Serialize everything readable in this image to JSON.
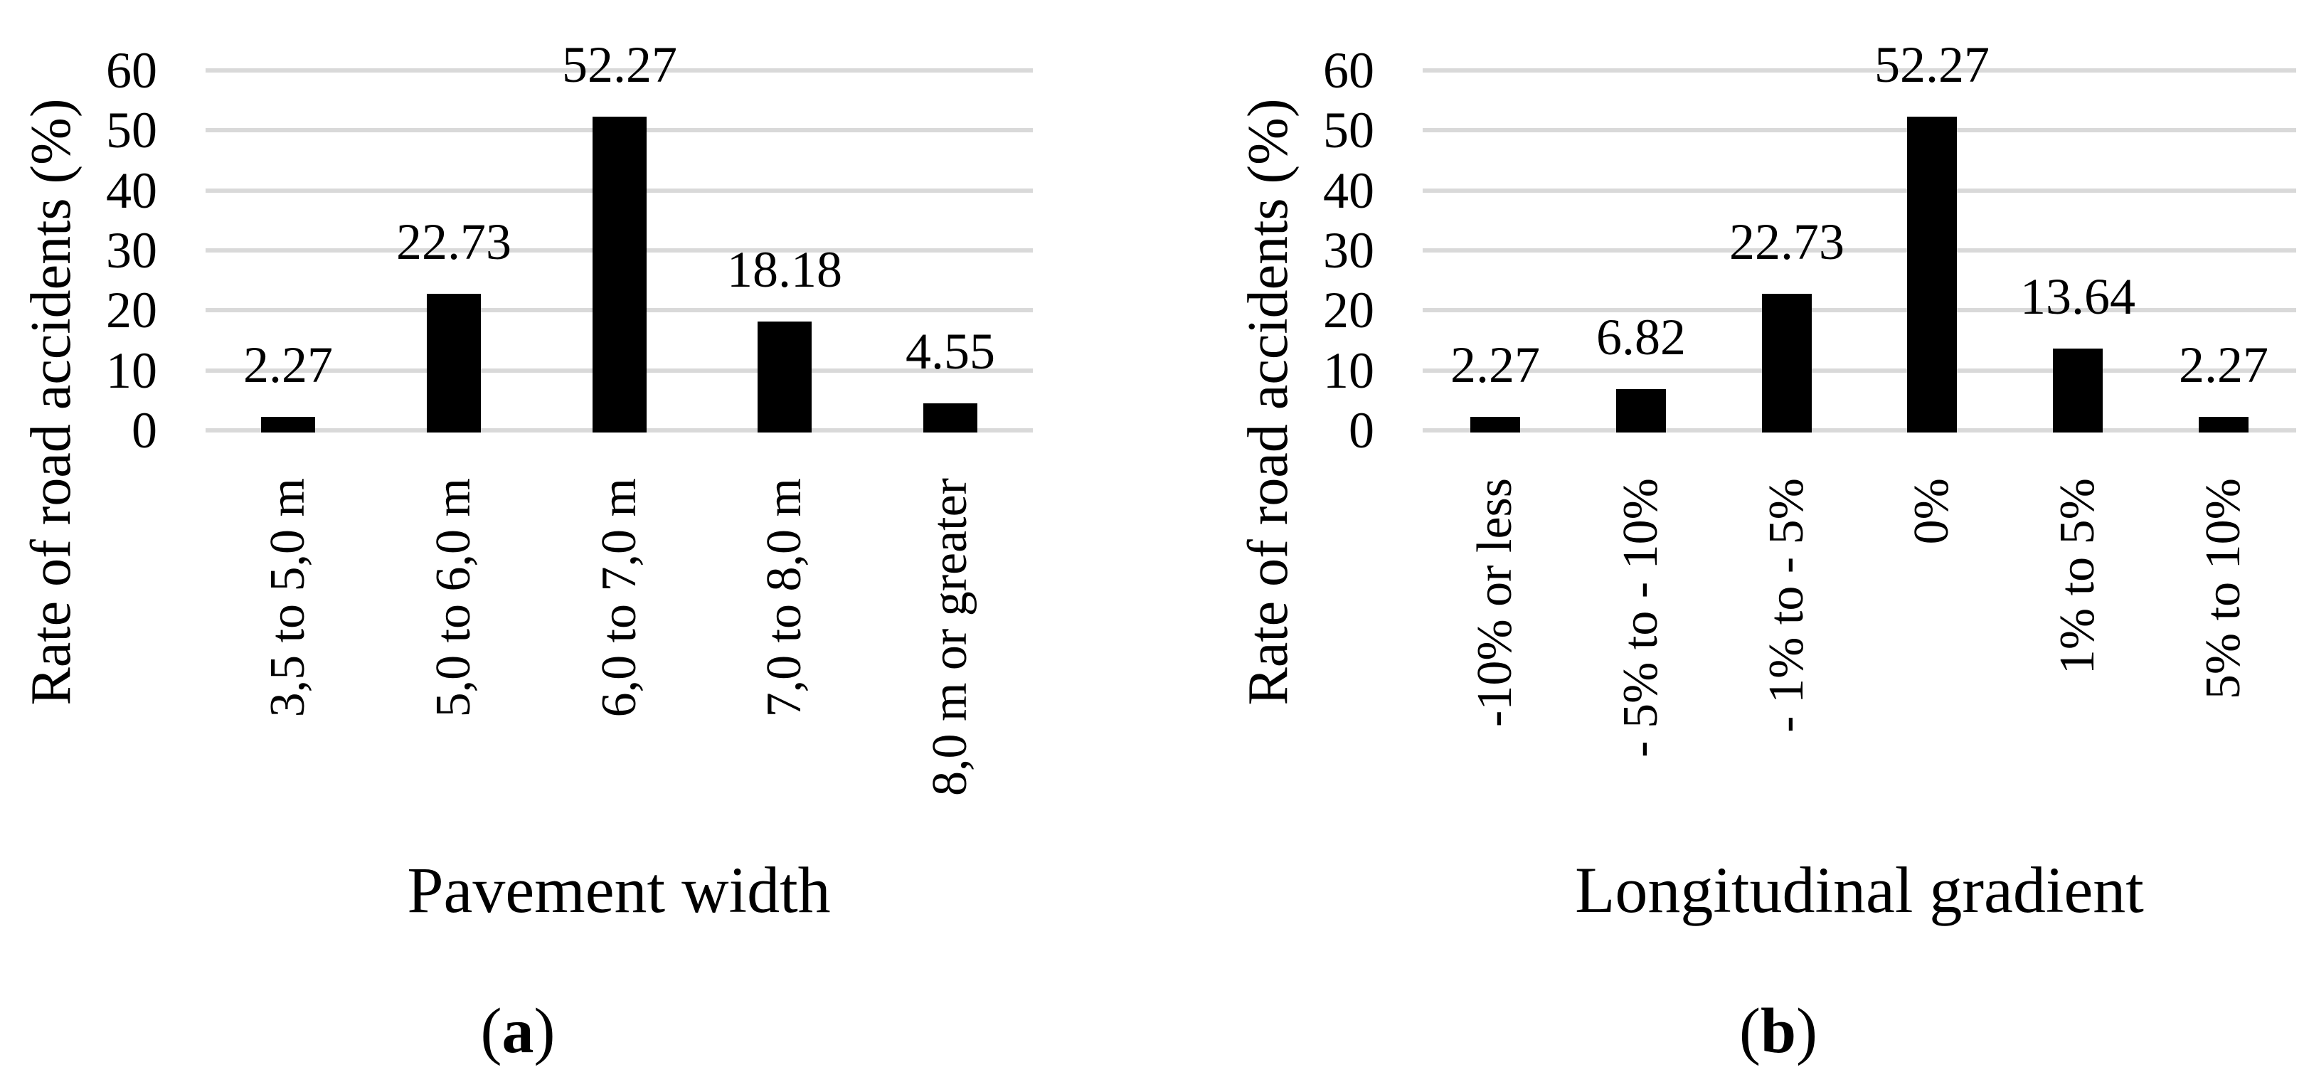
{
  "chart_data": [
    {
      "type": "bar",
      "panel": "a",
      "categories": [
        "3,5 to 5,0 m",
        "5,0 to 6,0 m",
        "6,0 to 7,0 m",
        "7,0 to 8,0 m",
        "8,0 m or greater"
      ],
      "values": [
        2.27,
        22.73,
        52.27,
        18.18,
        4.55
      ],
      "data_labels": [
        "2.27",
        "22.73",
        "52.27",
        "18.18",
        "4.55"
      ],
      "xlabel": "Pavement width",
      "ylabel": "Rate of road accidents (%)",
      "yticks": [
        0,
        10,
        20,
        30,
        40,
        50,
        60
      ],
      "ylim": [
        0,
        60
      ],
      "grid": "horizontal",
      "legend": "none",
      "bar_color": "#000000",
      "gridline_color": "#d9d9d9",
      "caption_open": "(",
      "caption_letter": "a",
      "caption_close": ")"
    },
    {
      "type": "bar",
      "panel": "b",
      "categories": [
        "-10% or less",
        "- 5% to - 10%",
        "- 1% to - 5%",
        "0%",
        "1% to 5%",
        "5% to 10%"
      ],
      "values": [
        2.27,
        6.82,
        22.73,
        52.27,
        13.64,
        2.27
      ],
      "data_labels": [
        "2.27",
        "6.82",
        "22.73",
        "52.27",
        "13.64",
        "2.27"
      ],
      "xlabel": "Longitudinal gradient",
      "ylabel": "Rate of road accidents (%)",
      "yticks": [
        0,
        10,
        20,
        30,
        40,
        50,
        60
      ],
      "ylim": [
        0,
        60
      ],
      "grid": "horizontal",
      "legend": "none",
      "bar_color": "#000000",
      "gridline_color": "#d9d9d9",
      "caption_open": "(",
      "caption_letter": "b",
      "caption_close": ")"
    }
  ]
}
